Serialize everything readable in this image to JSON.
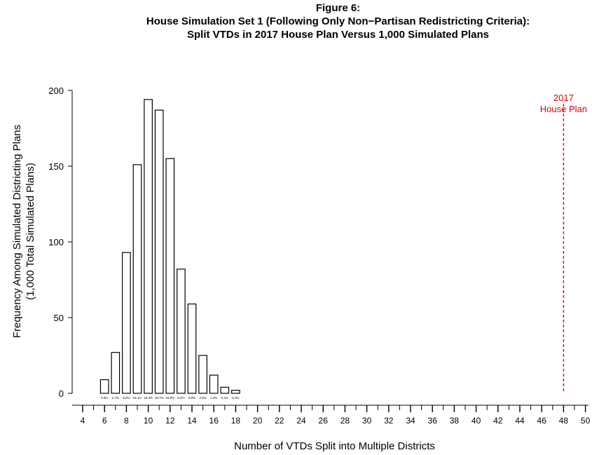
{
  "chart_data": {
    "type": "bar",
    "title": "Figure 6:",
    "subtitle": [
      "House Simulation Set 1 (Following Only Non−Partisan Redistricting Criteria):",
      "Split VTDs in 2017 House Plan Versus 1,000 Simulated Plans"
    ],
    "xlabel": "Number of VTDs Split into Multiple Districts",
    "ylabel": [
      "Frequency Among Simulated Districting Plans",
      "(1,000 Total Simulated Plans)"
    ],
    "x": [
      6,
      7,
      8,
      9,
      10,
      11,
      12,
      13,
      14,
      15,
      16,
      17,
      18
    ],
    "values": [
      9,
      27,
      93,
      151,
      194,
      187,
      155,
      82,
      59,
      25,
      12,
      4,
      2
    ],
    "bar_labels": [
      "0.9%",
      "2.7%",
      "9.3%",
      "15.1%",
      "19.4%",
      "18.7%",
      "15.5%",
      "8.2%",
      "5.9%",
      "2.5%",
      "1.2%",
      "0.4%",
      "0.2%"
    ],
    "xlim": [
      4,
      50
    ],
    "ylim": [
      0,
      200
    ],
    "xticks": [
      4,
      6,
      8,
      10,
      12,
      14,
      16,
      18,
      20,
      22,
      24,
      26,
      28,
      30,
      32,
      34,
      36,
      38,
      40,
      42,
      44,
      46,
      48,
      50
    ],
    "yticks": [
      0,
      50,
      100,
      150,
      200
    ],
    "grid": false,
    "reference_line": {
      "x": 48,
      "label": [
        "2017",
        "House Plan"
      ],
      "color": "#e00000",
      "style": "dashed"
    }
  }
}
